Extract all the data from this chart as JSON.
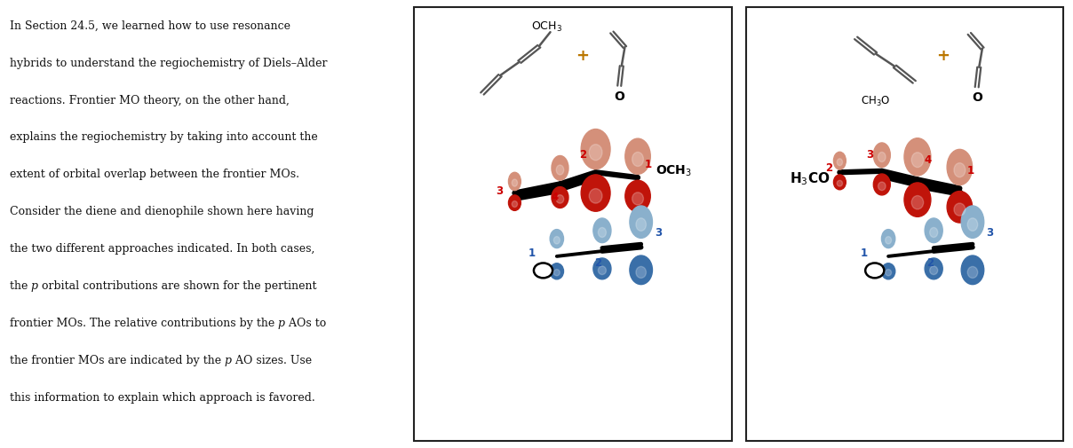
{
  "background": "#ffffff",
  "text_color": "#111111",
  "paragraph_lines": [
    "In Section 24.5, we learned how to use resonance",
    "hybrids to understand the regiochemistry of Diels–Alder",
    "reactions. Frontier MO theory, on the other hand,",
    "explains the regiochemistry by taking into account the",
    "extent of orbital overlap between the frontier MOs.",
    "Consider the diene and dienophile shown here having",
    "the two different approaches indicated. In both cases,",
    "the {p} orbital contributions are shown for the pertinent",
    "frontier MOs. The relative contributions by the {p} AOs to",
    "the frontier MOs are indicated by the {p} AO sizes. Use",
    "this information to explain which approach is favored."
  ],
  "red_dark": "#c0140a",
  "red_light": "#d4907a",
  "blue_dark": "#3a6fa8",
  "blue_light": "#8ab0cc",
  "line_color": "#444444",
  "label_color_red": "#cc0000",
  "label_color_blue": "#2255aa"
}
